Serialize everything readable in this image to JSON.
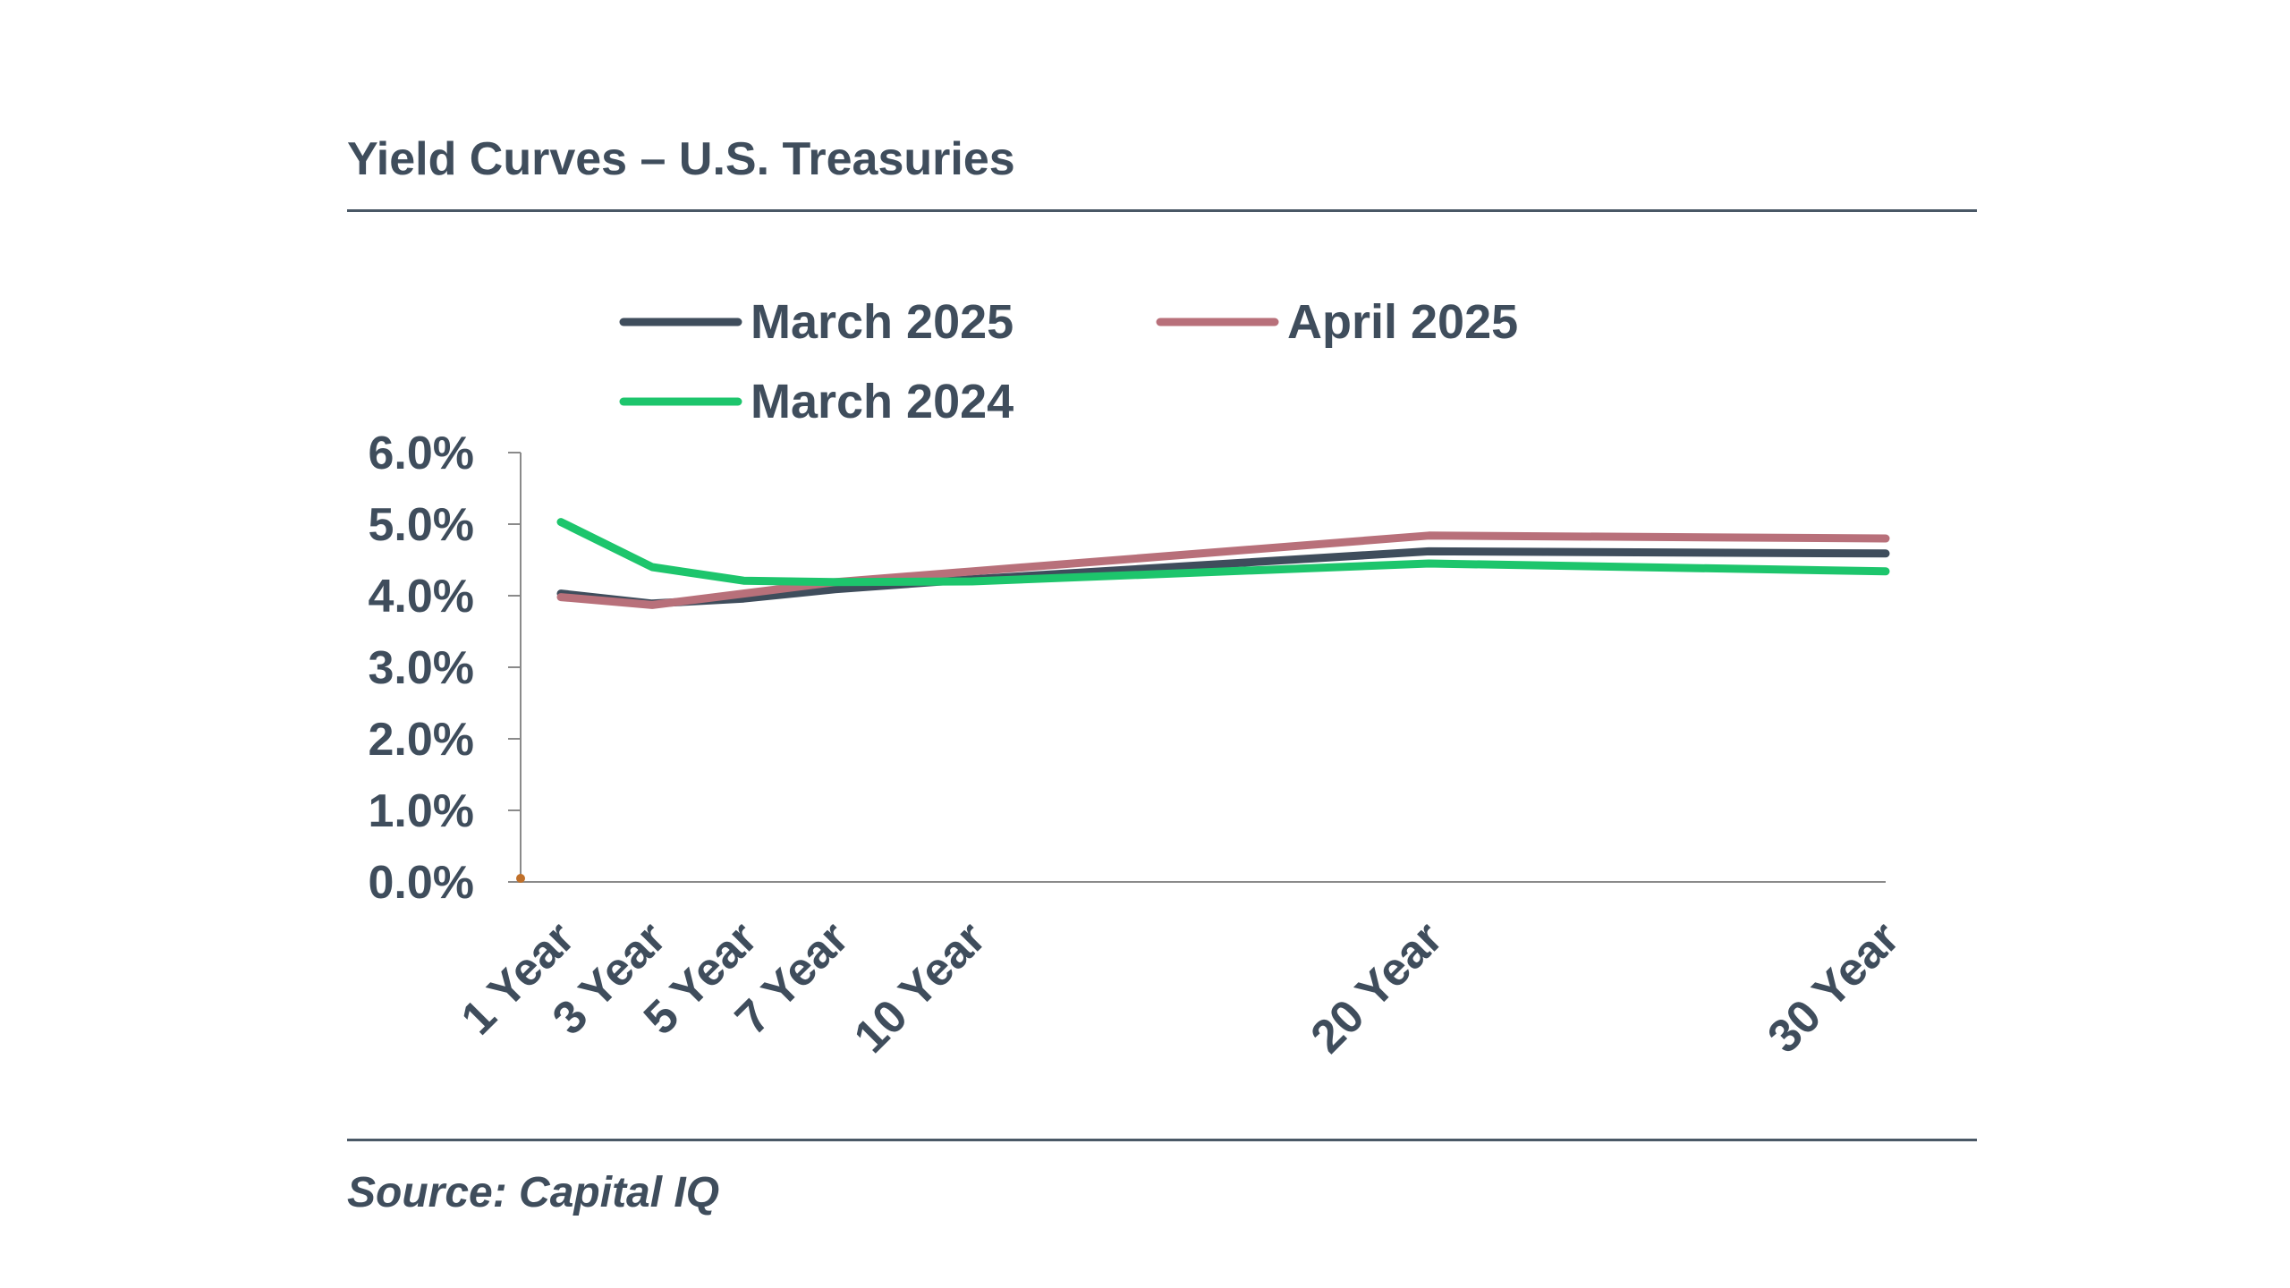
{
  "page": {
    "title": "Yield Curves – U.S. Treasuries",
    "source": "Source: Capital IQ"
  },
  "chart_data": {
    "type": "line",
    "title": "Yield Curves – U.S. Treasuries",
    "xlabel": "",
    "ylabel": "",
    "x_scale": "maturity in years (tick positions proportional to years)",
    "x": [
      1,
      3,
      5,
      7,
      10,
      20,
      30
    ],
    "categories": [
      "1 Year",
      "3 Year",
      "5 Year",
      "7 Year",
      "10 Year",
      "20 Year",
      "30 Year"
    ],
    "ylim": [
      0,
      6
    ],
    "y_ticks": [
      "0.0%",
      "1.0%",
      "2.0%",
      "3.0%",
      "4.0%",
      "5.0%",
      "6.0%"
    ],
    "grid": false,
    "legend_position": "top",
    "series": [
      {
        "name": "March 2025",
        "color": "#3f4d5c",
        "values": [
          4.03,
          3.89,
          3.96,
          4.09,
          4.23,
          4.62,
          4.59
        ]
      },
      {
        "name": "April 2025",
        "color": "#b8707a",
        "values": [
          3.98,
          3.87,
          4.03,
          4.19,
          4.34,
          4.84,
          4.8
        ]
      },
      {
        "name": "March 2024",
        "color": "#1dc56c",
        "values": [
          5.03,
          4.4,
          4.21,
          4.19,
          4.2,
          4.45,
          4.34
        ]
      }
    ]
  }
}
